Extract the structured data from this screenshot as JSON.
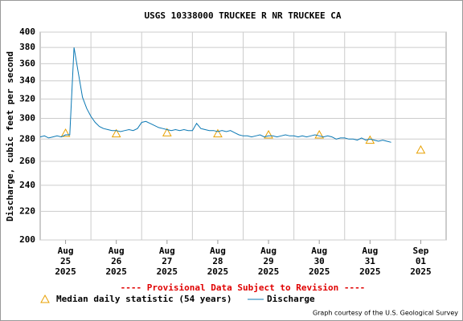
{
  "chart_data": {
    "type": "line",
    "title": "USGS 10338000 TRUCKEE R NR TRUCKEE CA",
    "y_label": "Discharge, cubic feet per second",
    "annotation": "---- Provisional Data Subject to Revision ----",
    "credit": "Graph courtesy of the U.S. Geological Survey",
    "log_y": true,
    "grid": true,
    "ylim": [
      200,
      400
    ],
    "yticks": [
      200,
      220,
      240,
      260,
      280,
      300,
      320,
      340,
      360,
      380,
      400
    ],
    "xlim": [
      "2025-08-25T00:00",
      "2025-09-02T00:00"
    ],
    "xticks": [
      {
        "value": "2025-08-25T12:00",
        "label": [
          "Aug",
          "25",
          "2025"
        ]
      },
      {
        "value": "2025-08-26T12:00",
        "label": [
          "Aug",
          "26",
          "2025"
        ]
      },
      {
        "value": "2025-08-27T12:00",
        "label": [
          "Aug",
          "27",
          "2025"
        ]
      },
      {
        "value": "2025-08-28T12:00",
        "label": [
          "Aug",
          "28",
          "2025"
        ]
      },
      {
        "value": "2025-08-29T12:00",
        "label": [
          "Aug",
          "29",
          "2025"
        ]
      },
      {
        "value": "2025-08-30T12:00",
        "label": [
          "Aug",
          "30",
          "2025"
        ]
      },
      {
        "value": "2025-08-31T12:00",
        "label": [
          "Aug",
          "31",
          "2025"
        ]
      },
      {
        "value": "2025-09-01T12:00",
        "label": [
          "Sep",
          "01",
          "2025"
        ]
      }
    ],
    "series": [
      {
        "name": "Median daily statistic (54 years)",
        "marker": "triangle",
        "color": "#e8a000",
        "x": [
          "2025-08-25T12:00",
          "2025-08-26T12:00",
          "2025-08-27T12:00",
          "2025-08-28T12:00",
          "2025-08-29T12:00",
          "2025-08-30T12:00",
          "2025-08-31T12:00",
          "2025-09-01T12:00"
        ],
        "values": [
          285.5,
          285,
          286,
          285,
          284,
          284,
          279,
          270
        ]
      },
      {
        "name": "Discharge",
        "marker": "line",
        "color": "#0a78b4",
        "x": [
          "2025-08-25T00:00",
          "2025-08-25T02:00",
          "2025-08-25T04:00",
          "2025-08-25T06:00",
          "2025-08-25T08:00",
          "2025-08-25T10:00",
          "2025-08-25T12:00",
          "2025-08-25T14:00",
          "2025-08-25T16:00",
          "2025-08-25T18:00",
          "2025-08-25T20:00",
          "2025-08-25T22:00",
          "2025-08-26T00:00",
          "2025-08-26T02:00",
          "2025-08-26T04:00",
          "2025-08-26T06:00",
          "2025-08-26T08:00",
          "2025-08-26T10:00",
          "2025-08-26T12:00",
          "2025-08-26T14:00",
          "2025-08-26T16:00",
          "2025-08-26T18:00",
          "2025-08-26T20:00",
          "2025-08-26T22:00",
          "2025-08-27T00:00",
          "2025-08-27T02:00",
          "2025-08-27T04:00",
          "2025-08-27T06:00",
          "2025-08-27T08:00",
          "2025-08-27T10:00",
          "2025-08-27T12:00",
          "2025-08-27T14:00",
          "2025-08-27T16:00",
          "2025-08-27T18:00",
          "2025-08-27T20:00",
          "2025-08-27T22:00",
          "2025-08-28T00:00",
          "2025-08-28T02:00",
          "2025-08-28T04:00",
          "2025-08-28T06:00",
          "2025-08-28T08:00",
          "2025-08-28T10:00",
          "2025-08-28T12:00",
          "2025-08-28T14:00",
          "2025-08-28T16:00",
          "2025-08-28T18:00",
          "2025-08-28T20:00",
          "2025-08-28T22:00",
          "2025-08-29T00:00",
          "2025-08-29T02:00",
          "2025-08-29T04:00",
          "2025-08-29T06:00",
          "2025-08-29T08:00",
          "2025-08-29T10:00",
          "2025-08-29T12:00",
          "2025-08-29T14:00",
          "2025-08-29T16:00",
          "2025-08-29T18:00",
          "2025-08-29T20:00",
          "2025-08-29T22:00",
          "2025-08-30T00:00",
          "2025-08-30T02:00",
          "2025-08-30T04:00",
          "2025-08-30T06:00",
          "2025-08-30T08:00",
          "2025-08-30T10:00",
          "2025-08-30T12:00",
          "2025-08-30T14:00",
          "2025-08-30T16:00",
          "2025-08-30T18:00",
          "2025-08-30T20:00",
          "2025-08-30T22:00",
          "2025-08-31T00:00",
          "2025-08-31T02:00",
          "2025-08-31T04:00",
          "2025-08-31T06:00",
          "2025-08-31T08:00",
          "2025-08-31T10:00",
          "2025-08-31T12:00",
          "2025-08-31T14:00",
          "2025-08-31T16:00",
          "2025-08-31T18:00",
          "2025-08-31T20:00",
          "2025-08-31T22:00"
        ],
        "values": [
          282,
          283,
          281,
          282,
          283,
          282,
          284,
          284,
          380,
          350,
          322,
          310,
          302,
          296,
          292,
          290,
          289,
          288,
          288,
          287,
          288,
          289,
          288,
          290,
          296,
          297,
          295,
          293,
          291,
          290,
          289,
          288,
          289,
          288,
          289,
          288,
          288,
          295,
          290,
          289,
          288,
          288,
          287,
          288,
          287,
          288,
          286,
          284,
          283,
          283,
          282,
          283,
          284,
          282,
          283,
          283,
          282,
          283,
          284,
          283,
          283,
          282,
          283,
          282,
          283,
          284,
          283,
          282,
          283,
          282,
          280,
          281,
          281,
          280,
          280,
          279,
          281,
          279,
          280,
          279,
          278,
          279,
          278,
          277
        ]
      }
    ]
  }
}
